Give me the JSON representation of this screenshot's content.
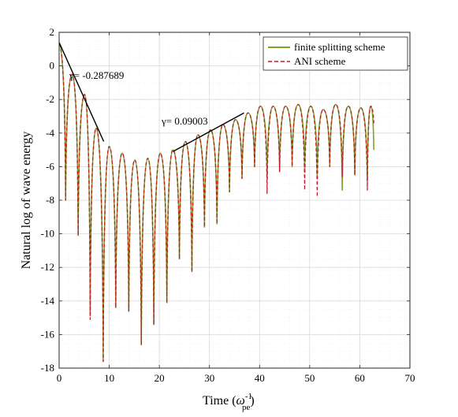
{
  "chart_data": {
    "type": "line",
    "xlabel": "Time (",
    "xlabel_symbol": "ω",
    "xlabel_sup": "-1",
    "xlabel_sub": "pe",
    "xlabel_close": ")",
    "ylabel": "Natural log of wave energy",
    "xlim": [
      0,
      70
    ],
    "ylim": [
      -18,
      2
    ],
    "xticks": [
      "0",
      "10",
      "20",
      "30",
      "40",
      "50",
      "60",
      "70"
    ],
    "yticks": [
      "2",
      "0",
      "-2",
      "-4",
      "-6",
      "-8",
      "-10",
      "-12",
      "-14",
      "-16",
      "-18"
    ],
    "grid": true,
    "legend_position": "top-right",
    "colors": {
      "finite": "#7fa32a",
      "ani": "#c21a2a",
      "fit": "#000000"
    },
    "series": [
      {
        "name": "finite splitting scheme",
        "style": "solid"
      },
      {
        "name": "ANI scheme",
        "style": "dashed"
      }
    ],
    "peaks": [
      [
        0.0,
        1.3
      ],
      [
        2.6,
        -0.5
      ],
      [
        5.1,
        -1.7
      ],
      [
        7.4,
        -3.7
      ],
      [
        10.0,
        -4.8
      ],
      [
        12.6,
        -5.2
      ],
      [
        15.1,
        -5.6
      ],
      [
        17.7,
        -5.5
      ],
      [
        20.2,
        -5.2
      ],
      [
        22.7,
        -5.0
      ],
      [
        25.2,
        -4.5
      ],
      [
        27.7,
        -4.1
      ],
      [
        30.2,
        -3.8
      ],
      [
        32.7,
        -3.5
      ],
      [
        35.2,
        -3.2
      ],
      [
        37.7,
        -2.8
      ],
      [
        40.2,
        -2.4
      ],
      [
        42.7,
        -2.4
      ],
      [
        45.2,
        -2.4
      ],
      [
        47.7,
        -2.3
      ],
      [
        50.2,
        -2.4
      ],
      [
        52.7,
        -2.6
      ],
      [
        55.2,
        -2.3
      ],
      [
        57.7,
        -2.4
      ],
      [
        60.2,
        -2.5
      ],
      [
        62.2,
        -2.4
      ]
    ],
    "minima_finite": [
      [
        1.3,
        -8.0
      ],
      [
        3.8,
        -10.1
      ],
      [
        6.2,
        -14.8
      ],
      [
        8.8,
        -17.6
      ],
      [
        11.3,
        -14.4
      ],
      [
        13.9,
        -14.6
      ],
      [
        16.4,
        -16.6
      ],
      [
        18.9,
        -15.4
      ],
      [
        21.5,
        -14.1
      ],
      [
        24.0,
        -11.5
      ],
      [
        26.5,
        -12.2
      ],
      [
        29.0,
        -9.6
      ],
      [
        31.5,
        -9.4
      ],
      [
        34.0,
        -7.5
      ],
      [
        36.5,
        -6.7
      ],
      [
        39.0,
        -6.0
      ],
      [
        41.5,
        -6.7
      ],
      [
        44.0,
        -6.3
      ],
      [
        46.5,
        -6.0
      ],
      [
        49.0,
        -6.3
      ],
      [
        51.5,
        -6.6
      ],
      [
        54.0,
        -6.0
      ],
      [
        56.5,
        -7.4
      ],
      [
        59.0,
        -6.5
      ],
      [
        61.5,
        -6.8
      ],
      [
        62.8,
        -5.0
      ]
    ],
    "minima_ani": [
      [
        1.3,
        -8.0
      ],
      [
        3.8,
        -10.1
      ],
      [
        6.2,
        -15.1
      ],
      [
        8.8,
        -17.6
      ],
      [
        11.3,
        -14.4
      ],
      [
        13.9,
        -14.6
      ],
      [
        16.4,
        -16.6
      ],
      [
        18.9,
        -15.4
      ],
      [
        21.5,
        -14.1
      ],
      [
        24.0,
        -11.5
      ],
      [
        26.5,
        -12.3
      ],
      [
        29.0,
        -9.6
      ],
      [
        31.5,
        -9.4
      ],
      [
        34.0,
        -7.5
      ],
      [
        36.5,
        -6.7
      ],
      [
        39.0,
        -6.0
      ],
      [
        41.5,
        -7.6
      ],
      [
        44.0,
        -6.3
      ],
      [
        46.5,
        -6.0
      ],
      [
        49.0,
        -7.4
      ],
      [
        51.5,
        -7.8
      ],
      [
        54.0,
        -6.0
      ],
      [
        56.5,
        -6.6
      ],
      [
        59.0,
        -6.5
      ],
      [
        61.5,
        -7.4
      ],
      [
        62.8,
        -3.5
      ]
    ],
    "fits": [
      {
        "label": "γ= -0.287689",
        "x0": 0.0,
        "y0": 1.4,
        "x1": 8.9,
        "y1": -4.5
      },
      {
        "label": "γ= 0.09003",
        "x0": 22.7,
        "y0": -5.1,
        "x1": 36.9,
        "y1": -2.8
      }
    ]
  }
}
